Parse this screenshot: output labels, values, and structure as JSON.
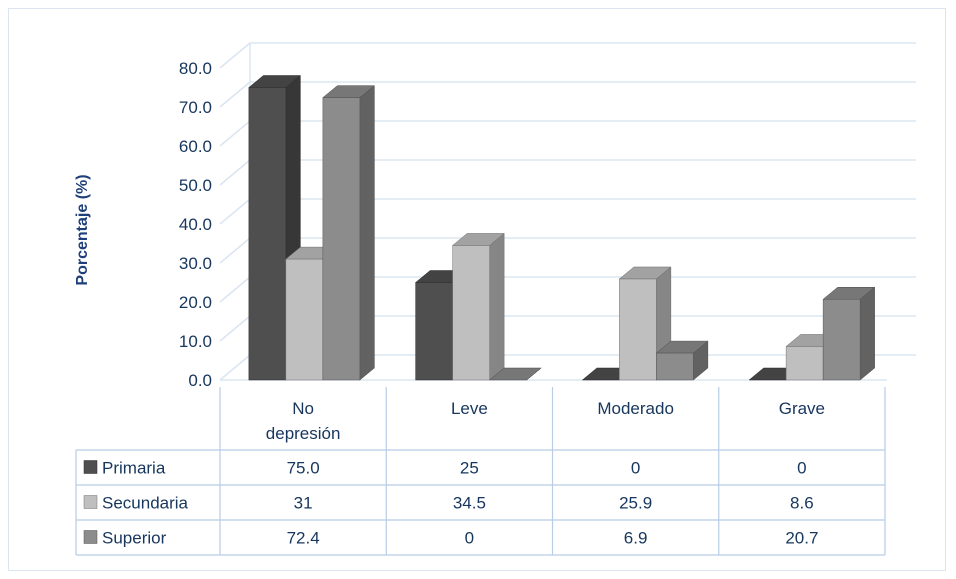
{
  "chart_data": {
    "type": "bar",
    "ylabel": "Porcentaje (%)",
    "xlabel": "",
    "title": "",
    "ylim": [
      0,
      80
    ],
    "yticks": [
      "0.0",
      "10.0",
      "20.0",
      "30.0",
      "40.0",
      "50.0",
      "60.0",
      "70.0",
      "80.0"
    ],
    "categories": [
      [
        "No",
        "depresión"
      ],
      [
        "Leve"
      ],
      [
        "Moderado"
      ],
      [
        "Grave"
      ]
    ],
    "series": [
      {
        "name": "Primaria",
        "values": [
          75.0,
          25,
          0,
          0
        ],
        "labels": [
          "75.0",
          "25",
          "0",
          "0"
        ],
        "color": "#4f4f4f"
      },
      {
        "name": "Secundaria",
        "values": [
          31,
          34.5,
          25.9,
          8.6
        ],
        "labels": [
          "31",
          "34.5",
          "25.9",
          "8.6"
        ],
        "color": "#bfbfbf"
      },
      {
        "name": "Superior",
        "values": [
          72.4,
          0,
          6.9,
          20.7
        ],
        "labels": [
          "72.4",
          "0",
          "6.9",
          "20.7"
        ],
        "color": "#8c8c8c"
      }
    ],
    "grid": true,
    "legend": "data-table",
    "style": "3d-clustered-column"
  }
}
